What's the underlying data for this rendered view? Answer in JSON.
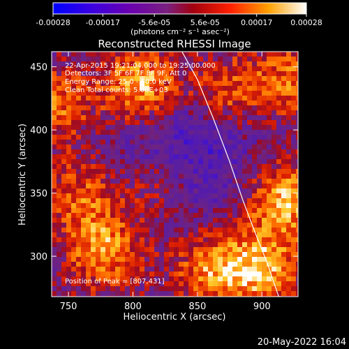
{
  "chart_data": {
    "type": "heatmap",
    "title": "Reconstructed RHESSI Image",
    "xlabel": "Heliocentric X (arcsec)",
    "ylabel": "Heliocentric Y (arcsec)",
    "xlim": [
      737,
      928
    ],
    "ylim": [
      268,
      462
    ],
    "x_ticks": [
      750,
      800,
      850,
      900
    ],
    "y_ticks": [
      300,
      350,
      400,
      450
    ],
    "colorbar": {
      "colormap": "heat",
      "range": [
        -0.00028,
        0.00028
      ],
      "tick_values": [
        -0.00028,
        -0.00017,
        -5.6e-05,
        5.6e-05,
        0.00017,
        0.00028
      ],
      "tick_labels": [
        "-0.00028",
        "-0.00017",
        "-5.6e-05",
        "5.6e-05",
        "0.00017",
        "0.00028"
      ],
      "unit_label": "(photons cm⁻² s⁻¹ asec⁻²)"
    },
    "annotations": {
      "time": "22-Apr-2015 19:21:04.000 to 19:25:00.000",
      "detectors": "Detectors: 3F 5F 6F 7F 8F 9F, Att 0",
      "energy": "Energy Range: 25.0 - 50.0 keV",
      "clean": "Clean     Total counts: 5.06E+03",
      "peak": "Position of Peak = [807,431]"
    },
    "peak_position": [
      807,
      431
    ],
    "limb_curve": [
      [
        838,
        462
      ],
      [
        850,
        440
      ],
      [
        862,
        410
      ],
      [
        875,
        375
      ],
      [
        885,
        345
      ],
      [
        895,
        318
      ],
      [
        904,
        295
      ],
      [
        913,
        268
      ]
    ],
    "high_regions": [
      {
        "x": 807,
        "y": 433,
        "intensity": 1.0
      },
      {
        "x": 918,
        "y": 345,
        "intensity": 0.85
      },
      {
        "x": 900,
        "y": 290,
        "intensity": 0.8
      },
      {
        "x": 778,
        "y": 305,
        "intensity": 0.75
      },
      {
        "x": 742,
        "y": 420,
        "intensity": 0.6
      },
      {
        "x": 872,
        "y": 430,
        "intensity": 0.65
      },
      {
        "x": 820,
        "y": 360,
        "intensity": 0.55
      },
      {
        "x": 760,
        "y": 350,
        "intensity": 0.55
      },
      {
        "x": 925,
        "y": 440,
        "intensity": 0.6
      },
      {
        "x": 860,
        "y": 290,
        "intensity": 0.65
      }
    ],
    "low_region": {
      "x": 835,
      "y": 385,
      "intensity": -0.6
    }
  },
  "footer": {
    "timestamp": "20-May-2022 16:04"
  }
}
